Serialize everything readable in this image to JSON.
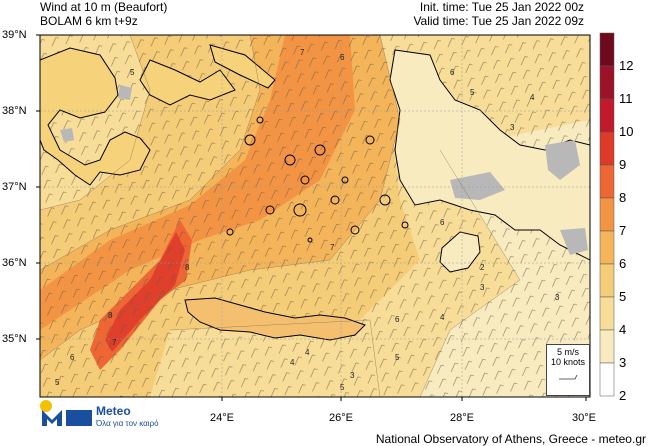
{
  "header": {
    "title": "Wind at 10 m (Beaufort)",
    "model": "BOLAM 6 km t+9z",
    "init_time": "Init. time: Tue 25 Jan 2022 00z",
    "valid_time": "Valid time: Tue 25 Jan 2022 09z"
  },
  "axes": {
    "lat_labels": [
      "39°N",
      "38°N",
      "37°N",
      "36°N",
      "35°N"
    ],
    "lon_labels": [
      "24°E",
      "26°E",
      "28°E",
      "30°E"
    ]
  },
  "colorbar": {
    "labels": [
      "12",
      "11",
      "10",
      "9",
      "8",
      "7",
      "6",
      "5",
      "4",
      "3",
      "2"
    ],
    "colors": [
      "#6e0a1e",
      "#9c1228",
      "#c21a2c",
      "#dd3a2a",
      "#ee6633",
      "#f39444",
      "#f4b45a",
      "#f5cc78",
      "#f7dd98",
      "#f9ebc0",
      "#ffffff"
    ]
  },
  "vector_legend": {
    "line1": "5 m/s",
    "line2": "10 knots"
  },
  "contour_labels": [
    "5",
    "6",
    "7",
    "6",
    "5",
    "4",
    "3",
    "8",
    "8",
    "7",
    "6",
    "5",
    "4",
    "3",
    "6",
    "5",
    "4",
    "3",
    "4",
    "2",
    "5",
    "7",
    "6",
    "3"
  ],
  "logo": {
    "name": "Meteo",
    "tagline": "Όλα για τον καιρό"
  },
  "footer": "National Observatory of Athens, Greece - meteo.gr"
}
